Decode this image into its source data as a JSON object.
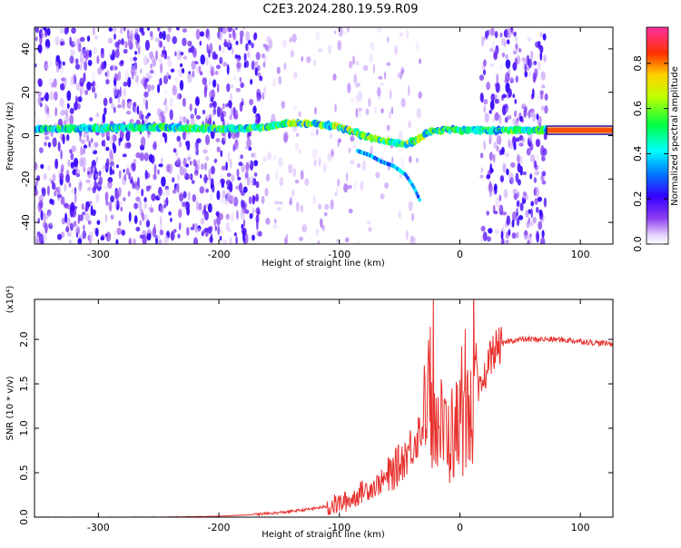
{
  "title": "C2E3.2024.280.19.59.R09",
  "chart_data": [
    {
      "type": "heatmap",
      "xlabel": "Height of straight line (km)",
      "ylabel": "Frequency (Hz)",
      "xlim": [
        -353,
        127
      ],
      "ylim": [
        -50,
        50
      ],
      "xticks": [
        -300,
        -200,
        -100,
        0,
        100
      ],
      "yticks": [
        -40,
        -20,
        0,
        20,
        40
      ],
      "colorbar": {
        "label": "Normalized spectral amplitude",
        "range": [
          0.0,
          0.96
        ],
        "ticks": [
          "0.0",
          "0.2",
          "0.4",
          "0.6",
          "0.8"
        ]
      },
      "ridge": {
        "x": [
          -353,
          -300,
          -250,
          -200,
          -160,
          -140,
          -120,
          -100,
          -80,
          -60,
          -45,
          -35,
          -25,
          -10,
          0,
          20,
          40,
          70,
          127
        ],
        "y": [
          3,
          3.5,
          4,
          3,
          4,
          6,
          5.5,
          4,
          0,
          -3,
          -4,
          -2,
          2,
          3,
          2.5,
          2.5,
          2.5,
          2.5,
          2.5
        ]
      },
      "lower_branch": {
        "x": [
          -85,
          -75,
          -65,
          -55,
          -45,
          -38,
          -33
        ],
        "y": [
          -7,
          -9,
          -12,
          -14,
          -18,
          -24,
          -30
        ]
      },
      "noise_regions": [
        {
          "x_range": [
            -353,
            -165
          ],
          "strength": "high"
        },
        {
          "x_range": [
            -165,
            -30
          ],
          "strength": "low"
        },
        {
          "x_range": [
            18,
            72
          ],
          "strength": "high"
        }
      ]
    },
    {
      "type": "line",
      "xlabel": "Height of straight line (km)",
      "ylabel": "SNR (10 * v/v)",
      "y_multiplier": "(x10⁴)",
      "xlim": [
        -353,
        127
      ],
      "ylim": [
        0,
        2.45
      ],
      "xticks": [
        -300,
        -200,
        -100,
        0,
        100
      ],
      "yticks": [
        "0.0",
        "0.5",
        "1.0",
        "1.5",
        "2.0"
      ],
      "series": [
        {
          "color": "#e8322f",
          "x": [
            -353,
            -300,
            -250,
            -200,
            -170,
            -150,
            -130,
            -110,
            -100,
            -90,
            -80,
            -70,
            -60,
            -50,
            -40,
            -30,
            -25,
            -20,
            -15,
            -10,
            -5,
            0,
            5,
            10,
            15,
            20,
            25,
            30,
            40,
            50,
            60,
            80,
            100,
            115,
            127
          ],
          "y": [
            0.0,
            0.0,
            0.0,
            0.01,
            0.03,
            0.05,
            0.08,
            0.12,
            0.15,
            0.2,
            0.3,
            0.35,
            0.45,
            0.6,
            0.8,
            1.05,
            1.2,
            1.1,
            1.0,
            0.9,
            0.95,
            1.05,
            1.1,
            1.2,
            1.35,
            1.55,
            1.8,
            1.9,
            1.98,
            2.0,
            2.0,
            2.0,
            1.98,
            1.96,
            1.95
          ]
        }
      ]
    }
  ]
}
